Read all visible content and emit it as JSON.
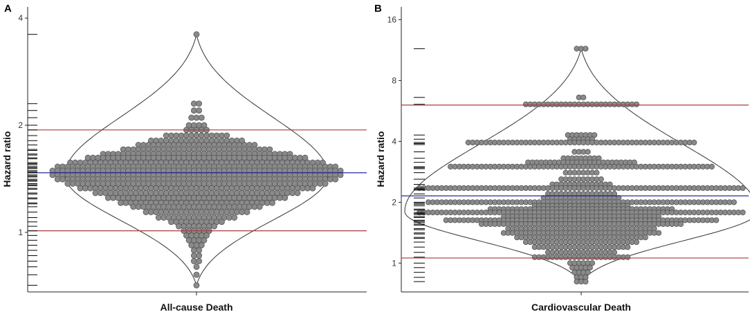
{
  "chart_data": [
    {
      "type": "violin-dotplot",
      "panel_label": "A",
      "xlabel": "All-cause Death",
      "ylabel": "Hazard ratio",
      "y_scale": "log2",
      "ylim": [
        0.68,
        4.3
      ],
      "y_ticks": [
        1,
        2,
        4
      ],
      "y_tick_labels": [
        "1",
        "2",
        "4"
      ],
      "summary_lines": [
        {
          "name": "pooled estimate",
          "value": 1.47,
          "color": "#1f2a9e"
        },
        {
          "name": "lower limit",
          "value": 1.01,
          "color": "#a83a3a"
        },
        {
          "name": "upper limit",
          "value": 1.94,
          "color": "#a83a3a"
        }
      ],
      "violin": {
        "min": 0.71,
        "max": 3.6,
        "mode": 1.45,
        "width_scale": 1.0
      },
      "rows": [
        {
          "hr": 3.6,
          "count": 1
        },
        {
          "hr": 2.3,
          "count": 2
        },
        {
          "hr": 2.2,
          "count": 2
        },
        {
          "hr": 2.1,
          "count": 3
        },
        {
          "hr": 2.0,
          "count": 4
        },
        {
          "hr": 1.94,
          "count": 5
        },
        {
          "hr": 1.87,
          "count": 13
        },
        {
          "hr": 1.81,
          "count": 19
        },
        {
          "hr": 1.76,
          "count": 24
        },
        {
          "hr": 1.71,
          "count": 30
        },
        {
          "hr": 1.66,
          "count": 38
        },
        {
          "hr": 1.62,
          "count": 44
        },
        {
          "hr": 1.57,
          "count": 51
        },
        {
          "hr": 1.53,
          "count": 56
        },
        {
          "hr": 1.49,
          "count": 58
        },
        {
          "hr": 1.45,
          "count": 58
        },
        {
          "hr": 1.41,
          "count": 56
        },
        {
          "hr": 1.37,
          "count": 52
        },
        {
          "hr": 1.33,
          "count": 47
        },
        {
          "hr": 1.29,
          "count": 41
        },
        {
          "hr": 1.25,
          "count": 36
        },
        {
          "hr": 1.21,
          "count": 31
        },
        {
          "hr": 1.18,
          "count": 26
        },
        {
          "hr": 1.14,
          "count": 21
        },
        {
          "hr": 1.1,
          "count": 16
        },
        {
          "hr": 1.07,
          "count": 11
        },
        {
          "hr": 1.04,
          "count": 8
        },
        {
          "hr": 1.01,
          "count": 6
        },
        {
          "hr": 0.98,
          "count": 5
        },
        {
          "hr": 0.95,
          "count": 4
        },
        {
          "hr": 0.92,
          "count": 3
        },
        {
          "hr": 0.89,
          "count": 2
        },
        {
          "hr": 0.86,
          "count": 2
        },
        {
          "hr": 0.83,
          "count": 2
        },
        {
          "hr": 0.8,
          "count": 1
        },
        {
          "hr": 0.76,
          "count": 1
        },
        {
          "hr": 0.71,
          "count": 1
        }
      ]
    },
    {
      "type": "violin-dotplot",
      "panel_label": "B",
      "xlabel": "Cardiovascular Death",
      "ylabel": "Hazard ratio",
      "y_scale": "log2",
      "ylim": [
        0.72,
        18.5
      ],
      "y_ticks": [
        1,
        2,
        4,
        8,
        16
      ],
      "y_tick_labels": [
        "1",
        "2",
        "4",
        "8",
        "16"
      ],
      "summary_lines": [
        {
          "name": "pooled estimate",
          "value": 2.15,
          "color": "#1f2a9e"
        },
        {
          "name": "lower limit",
          "value": 1.06,
          "color": "#a83a3a"
        },
        {
          "name": "upper limit",
          "value": 6.05,
          "color": "#a83a3a"
        }
      ],
      "violin": {
        "min": 0.8,
        "max": 11.5,
        "mode": 1.8,
        "width_scale": 1.0
      },
      "rows": [
        {
          "hr": 11.5,
          "count": 3
        },
        {
          "hr": 6.6,
          "count": 2
        },
        {
          "hr": 6.1,
          "count": 26
        },
        {
          "hr": 4.3,
          "count": 7
        },
        {
          "hr": 4.1,
          "count": 6
        },
        {
          "hr": 3.95,
          "count": 52
        },
        {
          "hr": 3.55,
          "count": 4
        },
        {
          "hr": 3.3,
          "count": 9
        },
        {
          "hr": 3.15,
          "count": 25
        },
        {
          "hr": 3.0,
          "count": 60
        },
        {
          "hr": 2.8,
          "count": 8
        },
        {
          "hr": 2.6,
          "count": 10
        },
        {
          "hr": 2.45,
          "count": 14
        },
        {
          "hr": 2.35,
          "count": 74
        },
        {
          "hr": 2.2,
          "count": 16
        },
        {
          "hr": 2.1,
          "count": 18
        },
        {
          "hr": 2.0,
          "count": 70
        },
        {
          "hr": 1.92,
          "count": 22
        },
        {
          "hr": 1.85,
          "count": 42
        },
        {
          "hr": 1.78,
          "count": 74
        },
        {
          "hr": 1.7,
          "count": 36
        },
        {
          "hr": 1.63,
          "count": 62
        },
        {
          "hr": 1.56,
          "count": 46
        },
        {
          "hr": 1.48,
          "count": 34
        },
        {
          "hr": 1.41,
          "count": 36
        },
        {
          "hr": 1.34,
          "count": 30
        },
        {
          "hr": 1.27,
          "count": 26
        },
        {
          "hr": 1.2,
          "count": 22
        },
        {
          "hr": 1.13,
          "count": 16
        },
        {
          "hr": 1.07,
          "count": 22
        },
        {
          "hr": 1.0,
          "count": 6
        },
        {
          "hr": 0.95,
          "count": 5
        },
        {
          "hr": 0.9,
          "count": 4
        },
        {
          "hr": 0.85,
          "count": 3
        },
        {
          "hr": 0.81,
          "count": 3
        }
      ]
    }
  ]
}
